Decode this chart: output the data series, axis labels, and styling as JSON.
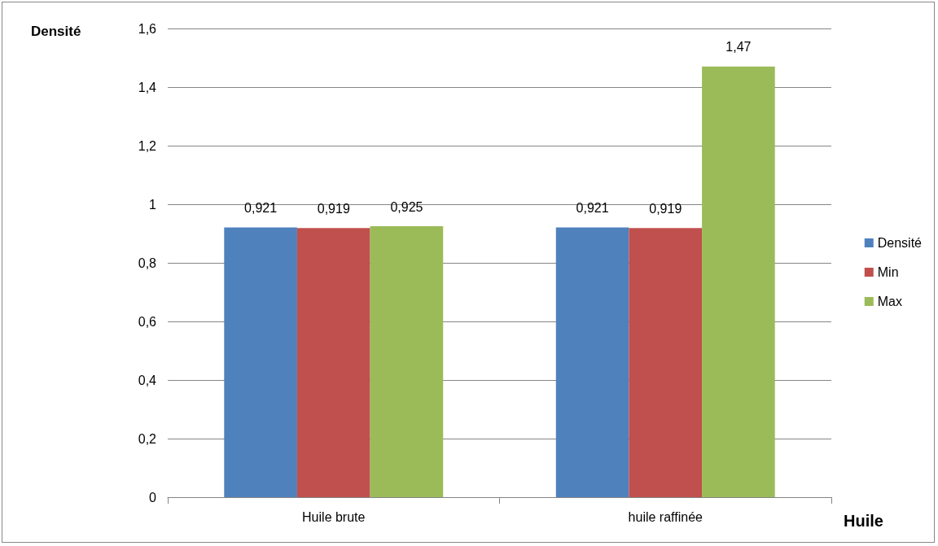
{
  "chart_data": {
    "type": "bar",
    "xlabel": "Huile",
    "ylabel": "Densité",
    "categories": [
      "Huile brute",
      "huile raffinée"
    ],
    "series": [
      {
        "name": "Densité",
        "color": "#4f81bd",
        "values": [
          0.921,
          0.921
        ],
        "value_labels": [
          "0,921",
          "0,921"
        ]
      },
      {
        "name": "Min",
        "color": "#c0504d",
        "values": [
          0.919,
          0.919
        ],
        "value_labels": [
          "0,919",
          "0,919"
        ]
      },
      {
        "name": "Max",
        "color": "#9bbb59",
        "values": [
          0.925,
          1.47
        ],
        "value_labels": [
          "0,925",
          "1,47"
        ]
      }
    ],
    "ylim": [
      0,
      1.6
    ],
    "yticks": [
      0,
      {
        "value": 0.2,
        "label": "0,2"
      },
      {
        "value": 0.4,
        "label": "0,4"
      },
      {
        "value": 0.6,
        "label": "0,6"
      },
      {
        "value": 0.8,
        "label": "0,8"
      },
      1,
      {
        "value": 1.2,
        "label": "1,2"
      },
      {
        "value": 1.4,
        "label": "1,4"
      },
      {
        "value": 1.6,
        "label": "1,6"
      }
    ],
    "grid": "y",
    "legend": "right"
  }
}
